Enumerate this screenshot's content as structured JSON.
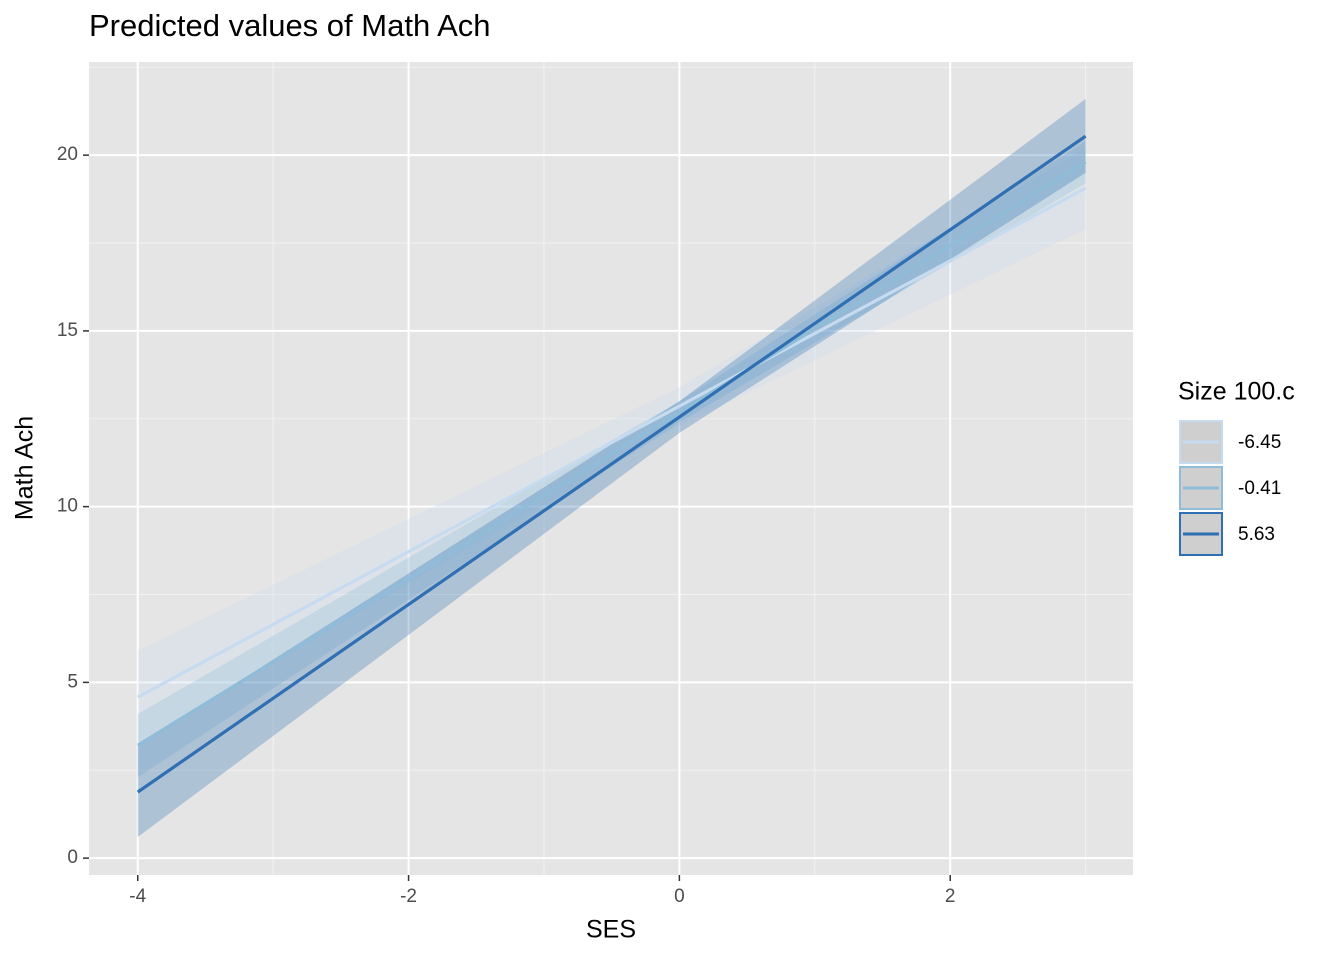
{
  "chart_data": {
    "type": "line",
    "title": "Predicted values of Math Ach",
    "x_label": "SES",
    "y_label": "Math Ach",
    "legend_title": "Size 100.c",
    "x": [
      -4,
      0,
      3
    ],
    "series": [
      {
        "name": "-6.45",
        "color": "#c6dbef",
        "values": [
          4.58,
          12.86,
          19.06
        ],
        "lower": [
          3.3,
          12.3,
          17.9
        ],
        "upper": [
          5.9,
          13.4,
          20.2
        ]
      },
      {
        "name": "-0.41",
        "color": "#8fbcd8",
        "values": [
          3.21,
          12.69,
          19.8
        ],
        "lower": [
          2.3,
          12.4,
          19.2
        ],
        "upper": [
          4.1,
          13.0,
          20.4
        ]
      },
      {
        "name": "5.63",
        "color": "#2f6fb3",
        "values": [
          1.88,
          12.55,
          20.54
        ],
        "lower": [
          0.6,
          12.1,
          19.5
        ],
        "upper": [
          3.2,
          13.0,
          21.6
        ]
      }
    ],
    "xlim": [
      -4.36,
      3.35
    ],
    "ylim": [
      -0.48,
      22.65
    ],
    "xticks": [
      -4,
      -2,
      0,
      2
    ],
    "yticks": [
      0,
      5,
      10,
      15,
      20
    ],
    "xminor": [
      -3,
      -1,
      1,
      3
    ],
    "yminor": [
      2.5,
      7.5,
      12.5,
      17.5,
      22.5
    ],
    "grid": true,
    "legend": "right"
  }
}
